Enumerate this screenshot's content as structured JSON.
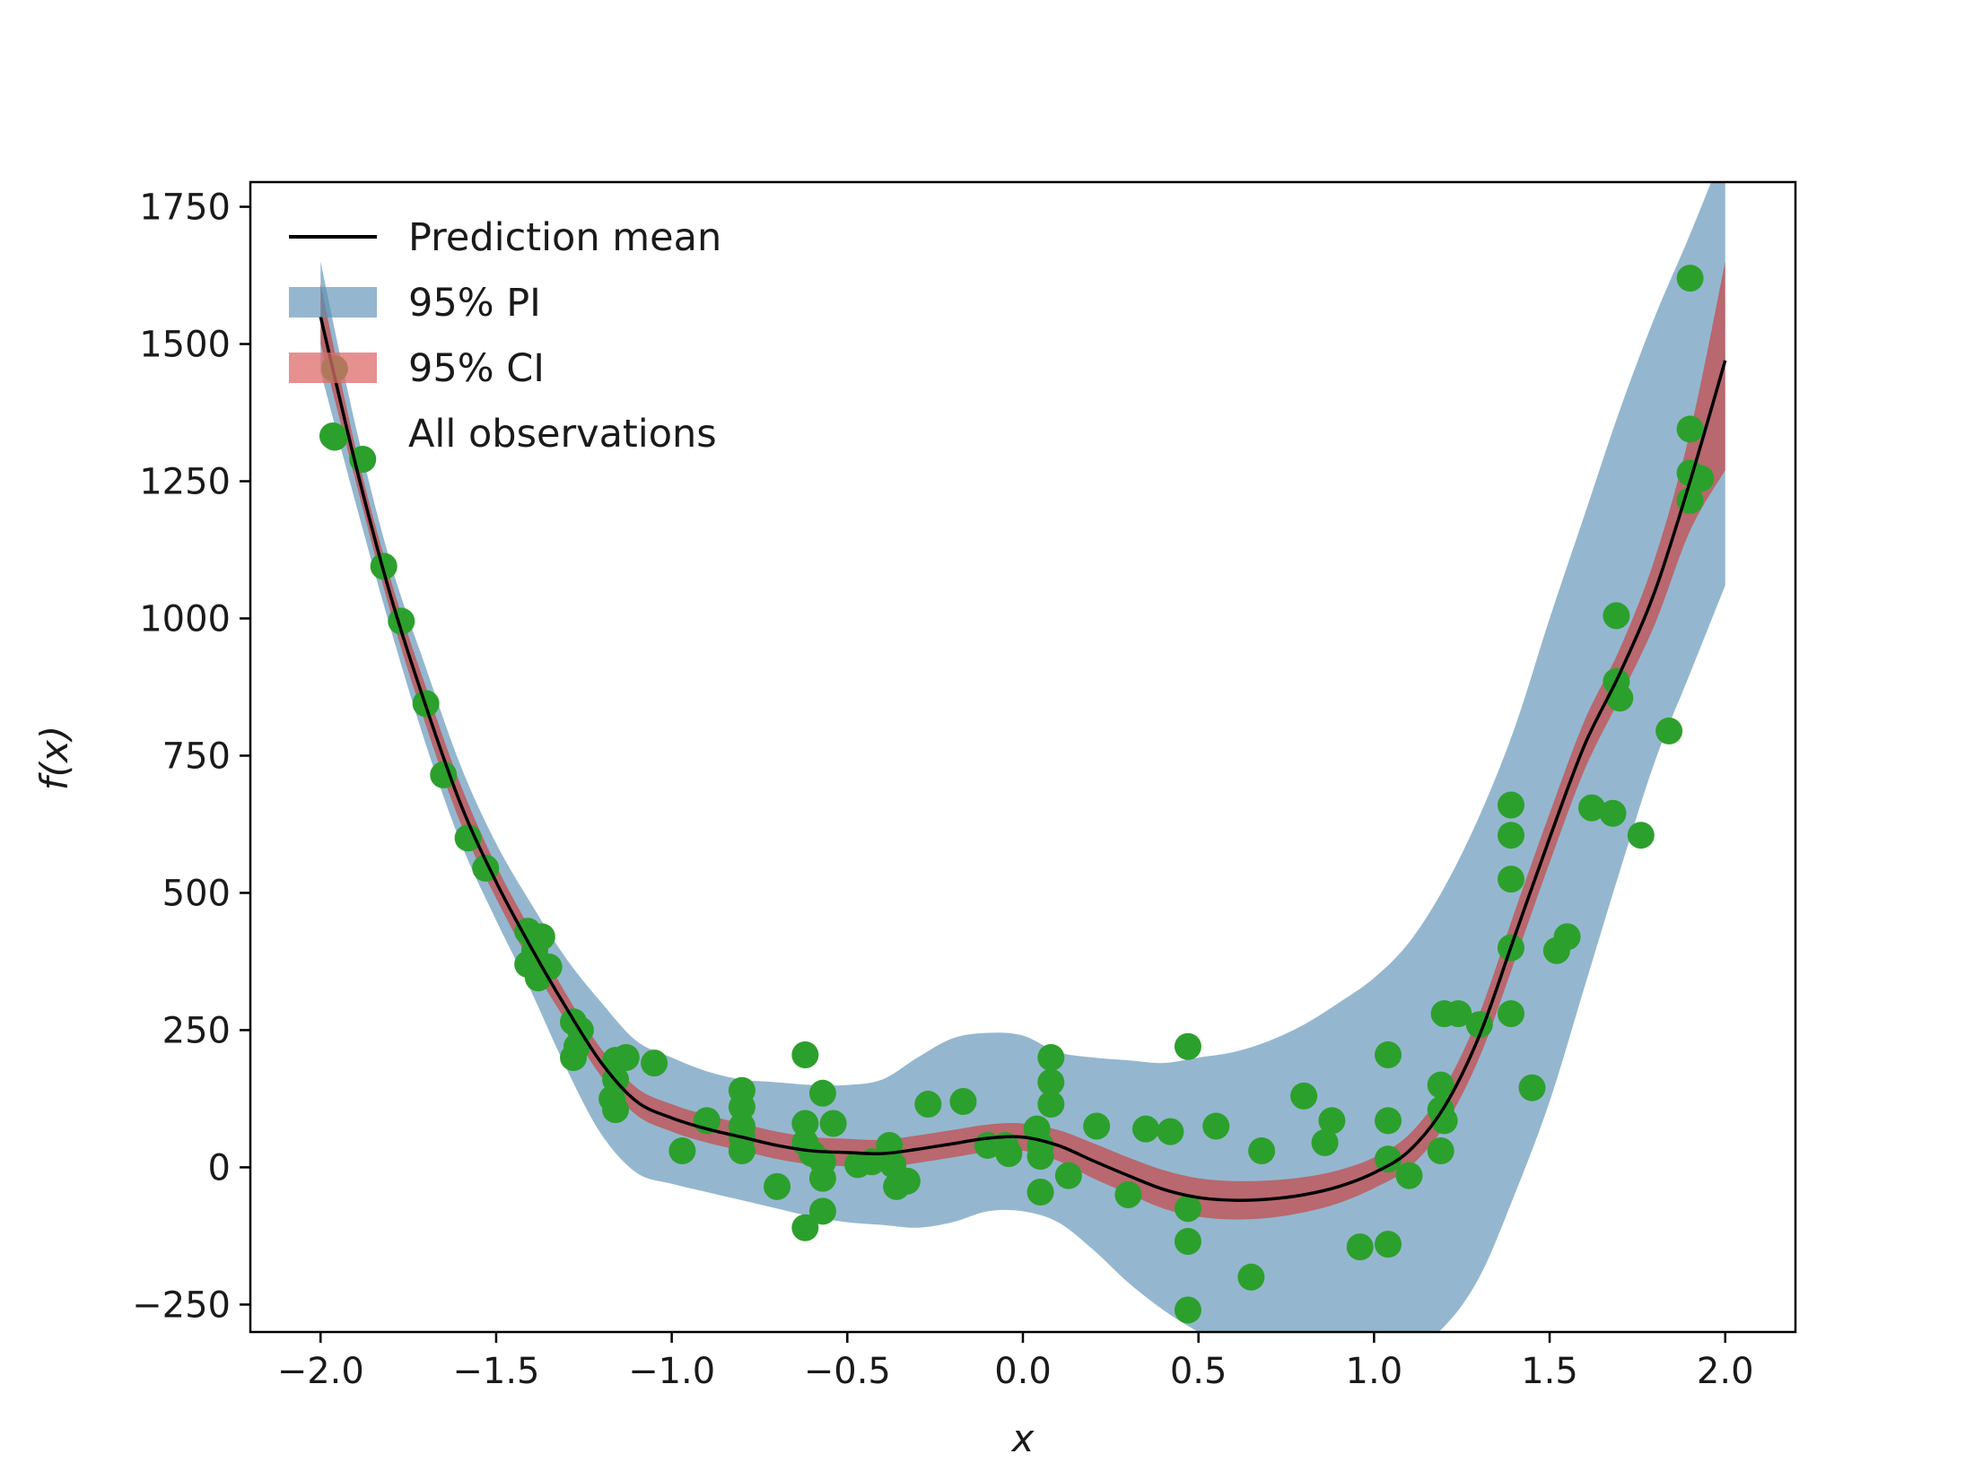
{
  "chart_data": {
    "type": "line",
    "xlabel": "x",
    "ylabel": "f(x)",
    "xlim": [
      -2.2,
      2.2
    ],
    "ylim": [
      -300,
      1795
    ],
    "x_ticks": [
      -2.0,
      -1.5,
      -1.0,
      -0.5,
      0.0,
      0.5,
      1.0,
      1.5,
      2.0
    ],
    "x_tick_labels": [
      "−2.0",
      "−1.5",
      "−1.0",
      "−0.5",
      "0.0",
      "0.5",
      "1.0",
      "1.5",
      "2.0"
    ],
    "y_ticks": [
      -250,
      0,
      250,
      500,
      750,
      1000,
      1250,
      1500,
      1750
    ],
    "y_tick_labels": [
      "−250",
      "0",
      "250",
      "500",
      "750",
      "1000",
      "1250",
      "1500",
      "1750"
    ],
    "grid": false,
    "legend_position": "top-left",
    "legend": [
      "Prediction mean",
      "95% PI",
      "95% CI",
      "All observations"
    ],
    "colors": {
      "mean": "#000000",
      "pi": "#5b91b5",
      "ci": "#c44d4d",
      "observations": "#2ca02c"
    },
    "series": [
      {
        "name": "Prediction mean",
        "kind": "line",
        "x": [
          -2.0,
          -1.9,
          -1.8,
          -1.7,
          -1.6,
          -1.5,
          -1.4,
          -1.3,
          -1.2,
          -1.1,
          -1.0,
          -0.9,
          -0.8,
          -0.7,
          -0.6,
          -0.5,
          -0.4,
          -0.3,
          -0.2,
          -0.1,
          0.0,
          0.1,
          0.2,
          0.3,
          0.4,
          0.5,
          0.6,
          0.7,
          0.8,
          0.9,
          1.0,
          1.1,
          1.2,
          1.3,
          1.4,
          1.5,
          1.6,
          1.7,
          1.8,
          1.9,
          2.0
        ],
        "y": [
          1550,
          1280,
          1040,
          840,
          660,
          520,
          400,
          290,
          190,
          120,
          90,
          70,
          55,
          40,
          30,
          27,
          25,
          33,
          43,
          53,
          55,
          40,
          12,
          -15,
          -40,
          -55,
          -60,
          -58,
          -50,
          -35,
          -10,
          30,
          110,
          240,
          420,
          600,
          770,
          900,
          1050,
          1250,
          1470
        ]
      },
      {
        "name": "95% PI",
        "kind": "band",
        "x": [
          -2.0,
          -1.9,
          -1.8,
          -1.7,
          -1.6,
          -1.5,
          -1.4,
          -1.3,
          -1.2,
          -1.1,
          -1.0,
          -0.9,
          -0.8,
          -0.7,
          -0.6,
          -0.5,
          -0.4,
          -0.3,
          -0.2,
          -0.1,
          0.0,
          0.1,
          0.2,
          0.3,
          0.4,
          0.5,
          0.6,
          0.7,
          0.8,
          0.9,
          1.0,
          1.1,
          1.2,
          1.3,
          1.4,
          1.5,
          1.6,
          1.7,
          1.8,
          1.9,
          2.0
        ],
        "lower": [
          1450,
          1210,
          980,
          770,
          590,
          450,
          320,
          180,
          60,
          -10,
          -30,
          -45,
          -60,
          -75,
          -90,
          -100,
          -105,
          -110,
          -100,
          -80,
          -80,
          -100,
          -150,
          -210,
          -260,
          -300,
          -330,
          -350,
          -360,
          -360,
          -350,
          -330,
          -290,
          -200,
          -50,
          120,
          330,
          540,
          740,
          900,
          1060
        ],
        "upper": [
          1650,
          1350,
          1100,
          910,
          730,
          590,
          480,
          380,
          300,
          230,
          200,
          175,
          160,
          155,
          150,
          150,
          160,
          200,
          235,
          245,
          240,
          210,
          200,
          195,
          190,
          200,
          210,
          230,
          260,
          300,
          345,
          410,
          510,
          640,
          800,
          1000,
          1190,
          1380,
          1550,
          1700,
          1860
        ]
      },
      {
        "name": "95% CI",
        "kind": "band",
        "x": [
          -2.0,
          -1.9,
          -1.8,
          -1.7,
          -1.6,
          -1.5,
          -1.4,
          -1.3,
          -1.2,
          -1.1,
          -1.0,
          -0.9,
          -0.8,
          -0.7,
          -0.6,
          -0.5,
          -0.4,
          -0.3,
          -0.2,
          -0.1,
          0.0,
          0.1,
          0.2,
          0.3,
          0.4,
          0.5,
          0.6,
          0.7,
          0.8,
          0.9,
          1.0,
          1.1,
          1.2,
          1.3,
          1.4,
          1.5,
          1.6,
          1.7,
          1.8,
          1.9,
          2.0
        ],
        "lower": [
          1500,
          1250,
          1010,
          805,
          625,
          490,
          370,
          265,
          165,
          95,
          65,
          45,
          30,
          15,
          5,
          2,
          0,
          8,
          18,
          28,
          30,
          12,
          -20,
          -48,
          -75,
          -90,
          -95,
          -92,
          -82,
          -65,
          -38,
          0,
          75,
          200,
          375,
          555,
          725,
          855,
          990,
          1160,
          1270
        ],
        "upper": [
          1610,
          1310,
          1070,
          875,
          695,
          550,
          430,
          315,
          215,
          145,
          115,
          95,
          80,
          65,
          55,
          52,
          50,
          58,
          68,
          78,
          80,
          68,
          44,
          18,
          -5,
          -20,
          -25,
          -24,
          -18,
          -5,
          18,
          60,
          145,
          280,
          465,
          645,
          815,
          945,
          1110,
          1340,
          1650
        ]
      },
      {
        "name": "All observations",
        "kind": "scatter",
        "points": [
          [
            -1.96,
            1455
          ],
          [
            -1.96,
            1330
          ],
          [
            -1.88,
            1290
          ],
          [
            -1.82,
            1095
          ],
          [
            -1.77,
            995
          ],
          [
            -1.7,
            845
          ],
          [
            -1.65,
            715
          ],
          [
            -1.58,
            600
          ],
          [
            -1.53,
            545
          ],
          [
            -1.41,
            430
          ],
          [
            -1.37,
            420
          ],
          [
            -1.39,
            395
          ],
          [
            -1.35,
            365
          ],
          [
            -1.41,
            370
          ],
          [
            -1.38,
            345
          ],
          [
            -1.28,
            265
          ],
          [
            -1.26,
            250
          ],
          [
            -1.27,
            220
          ],
          [
            -1.28,
            200
          ],
          [
            -1.16,
            195
          ],
          [
            -1.13,
            200
          ],
          [
            -1.16,
            160
          ],
          [
            -1.17,
            125
          ],
          [
            -1.16,
            105
          ],
          [
            -1.05,
            190
          ],
          [
            -0.97,
            30
          ],
          [
            -0.9,
            85
          ],
          [
            -0.8,
            140
          ],
          [
            -0.8,
            110
          ],
          [
            -0.8,
            75
          ],
          [
            -0.8,
            55
          ],
          [
            -0.8,
            30
          ],
          [
            -0.7,
            -35
          ],
          [
            -0.62,
            205
          ],
          [
            -0.62,
            -110
          ],
          [
            -0.62,
            80
          ],
          [
            -0.62,
            45
          ],
          [
            -0.6,
            25
          ],
          [
            -0.57,
            135
          ],
          [
            -0.57,
            10
          ],
          [
            -0.57,
            -20
          ],
          [
            -0.57,
            -80
          ],
          [
            -0.54,
            80
          ],
          [
            -0.47,
            5
          ],
          [
            -0.43,
            10
          ],
          [
            -0.38,
            40
          ],
          [
            -0.37,
            5
          ],
          [
            -0.36,
            -35
          ],
          [
            -0.33,
            -25
          ],
          [
            -0.27,
            115
          ],
          [
            -0.17,
            120
          ],
          [
            -0.1,
            40
          ],
          [
            -0.05,
            40
          ],
          [
            -0.04,
            25
          ],
          [
            0.04,
            70
          ],
          [
            0.05,
            40
          ],
          [
            0.05,
            20
          ],
          [
            0.05,
            -45
          ],
          [
            0.08,
            200
          ],
          [
            0.08,
            155
          ],
          [
            0.08,
            115
          ],
          [
            0.13,
            -15
          ],
          [
            0.21,
            75
          ],
          [
            0.3,
            -50
          ],
          [
            0.35,
            70
          ],
          [
            0.42,
            65
          ],
          [
            0.47,
            220
          ],
          [
            0.47,
            -75
          ],
          [
            0.47,
            -135
          ],
          [
            0.47,
            -260
          ],
          [
            0.55,
            75
          ],
          [
            0.65,
            -200
          ],
          [
            0.68,
            30
          ],
          [
            0.8,
            130
          ],
          [
            0.86,
            45
          ],
          [
            0.88,
            85
          ],
          [
            0.96,
            -145
          ],
          [
            1.04,
            205
          ],
          [
            1.04,
            85
          ],
          [
            1.04,
            15
          ],
          [
            1.04,
            -140
          ],
          [
            1.1,
            -15
          ],
          [
            1.19,
            150
          ],
          [
            1.19,
            105
          ],
          [
            1.2,
            85
          ],
          [
            1.19,
            30
          ],
          [
            1.2,
            280
          ],
          [
            1.24,
            280
          ],
          [
            1.3,
            260
          ],
          [
            1.39,
            660
          ],
          [
            1.39,
            605
          ],
          [
            1.39,
            525
          ],
          [
            1.39,
            400
          ],
          [
            1.39,
            280
          ],
          [
            1.45,
            145
          ],
          [
            1.52,
            395
          ],
          [
            1.55,
            420
          ],
          [
            1.62,
            655
          ],
          [
            1.68,
            645
          ],
          [
            1.69,
            1005
          ],
          [
            1.69,
            885
          ],
          [
            1.7,
            855
          ],
          [
            1.76,
            605
          ],
          [
            1.84,
            795
          ],
          [
            1.9,
            1620
          ],
          [
            1.9,
            1345
          ],
          [
            1.9,
            1265
          ],
          [
            1.9,
            1215
          ],
          [
            1.93,
            1255
          ]
        ]
      }
    ]
  }
}
